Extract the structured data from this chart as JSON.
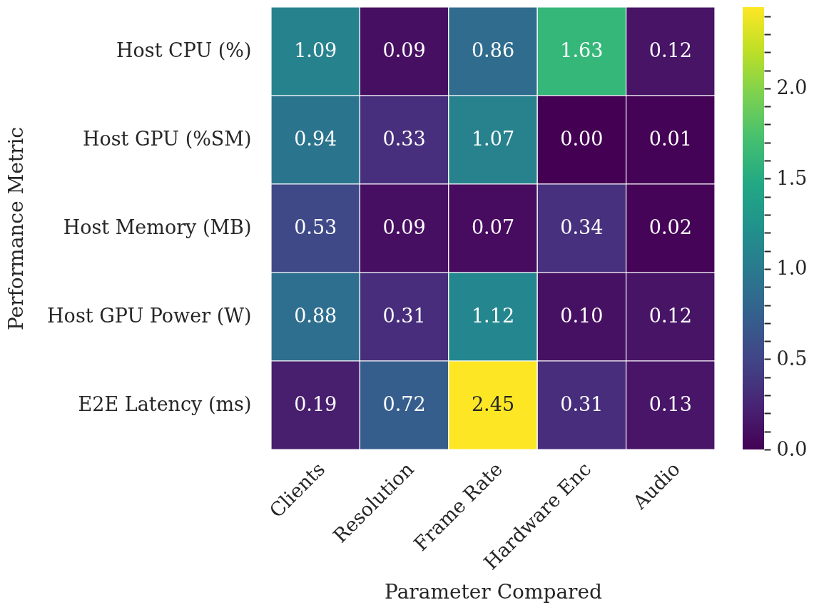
{
  "chart_data": {
    "type": "heatmap",
    "xlabel": "Parameter Compared",
    "ylabel": "Performance Metric",
    "categories": [
      "Clients",
      "Resolution",
      "Frame Rate",
      "Hardware Enc",
      "Audio"
    ],
    "y_categories": [
      "Host CPU (%)",
      "Host GPU (%SM)",
      "Host Memory (MB)",
      "Host GPU Power (W)",
      "E2E Latency (ms)"
    ],
    "cells": [
      [
        1.09,
        0.09,
        0.86,
        1.63,
        0.12
      ],
      [
        0.94,
        0.33,
        1.07,
        0.0,
        0.01
      ],
      [
        0.53,
        0.09,
        0.07,
        0.34,
        0.02
      ],
      [
        0.88,
        0.31,
        1.12,
        0.1,
        0.12
      ],
      [
        0.19,
        0.72,
        2.45,
        0.31,
        0.13
      ]
    ],
    "cell_labels": [
      [
        "1.09",
        "0.09",
        "0.86",
        "1.63",
        "0.12"
      ],
      [
        "0.94",
        "0.33",
        "1.07",
        "0.00",
        "0.01"
      ],
      [
        "0.53",
        "0.09",
        "0.07",
        "0.34",
        "0.02"
      ],
      [
        "0.88",
        "0.31",
        "1.12",
        "0.10",
        "0.12"
      ],
      [
        "0.19",
        "0.72",
        "2.45",
        "0.31",
        "0.13"
      ]
    ],
    "clim": [
      0,
      2.45
    ],
    "cticks": [
      {
        "value": 0,
        "label": "0.0"
      },
      {
        "value": 0.1,
        "label": null
      },
      {
        "value": 0.2,
        "label": null
      },
      {
        "value": 0.3,
        "label": null
      },
      {
        "value": 0.4,
        "label": null
      },
      0.5,
      {
        "value": 0.6,
        "label": null
      },
      {
        "value": 0.7,
        "label": null
      },
      {
        "value": 0.8,
        "label": null
      },
      {
        "value": 0.9,
        "label": null
      },
      {
        "value": 1,
        "label": "1.0"
      },
      {
        "value": 1.1,
        "label": null
      },
      {
        "value": 1.2,
        "label": null
      },
      {
        "value": 1.3,
        "label": null
      },
      {
        "value": 1.4,
        "label": null
      },
      1.5,
      {
        "value": 1.6,
        "label": null
      },
      {
        "value": 1.7,
        "label": null
      },
      {
        "value": 1.8,
        "label": null
      },
      {
        "value": 1.9,
        "label": null
      },
      {
        "value": 2,
        "label": "2.0"
      },
      {
        "value": 2.1,
        "label": null
      },
      {
        "value": 2.2,
        "label": null
      },
      {
        "value": 2.3,
        "label": null
      },
      {
        "value": 2.4,
        "label": null
      }
    ]
  }
}
